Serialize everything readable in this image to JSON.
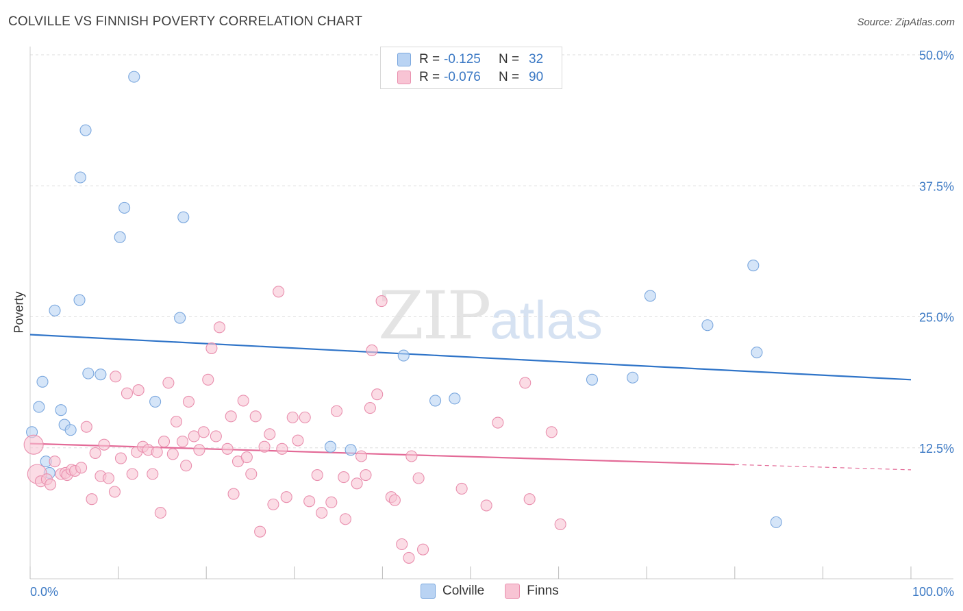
{
  "header": {
    "title": "COLVILLE VS FINNISH POVERTY CORRELATION CHART",
    "source": "Source: ZipAtlas.com"
  },
  "watermark": {
    "part1": "ZIP",
    "part2": "atlas"
  },
  "legend_top": {
    "rows": [
      {
        "r_label": "R =",
        "r_value": "-0.125",
        "n_label": "N =",
        "n_value": "32"
      },
      {
        "r_label": "R =",
        "r_value": "-0.076",
        "n_label": "N =",
        "n_value": "90"
      }
    ]
  },
  "legend_bottom": {
    "items": [
      "Colville",
      "Finns"
    ]
  },
  "colors": {
    "colville_fill": "#b9d3f3",
    "colville_stroke": "#7aa7de",
    "colville_line": "#2f74c8",
    "finns_fill": "#f8c4d4",
    "finns_stroke": "#e98fae",
    "finns_line": "#e36a97",
    "axis_text": "#3a78c4",
    "grid": "#dddddd"
  },
  "chart_data": {
    "type": "scatter",
    "title": "COLVILLE VS FINNISH POVERTY CORRELATION CHART",
    "xlabel": "",
    "ylabel": "Poverty",
    "xlim": [
      0,
      100
    ],
    "ylim": [
      0,
      50
    ],
    "x_tick_labels": [
      "0.0%",
      "100.0%"
    ],
    "y_ticks": [
      12.5,
      25.0,
      37.5,
      50.0
    ],
    "y_tick_labels": [
      "12.5%",
      "25.0%",
      "37.5%",
      "50.0%"
    ],
    "series": [
      {
        "name": "Colville",
        "r": -0.125,
        "n": 32,
        "trend": {
          "x": [
            0,
            100
          ],
          "y": [
            23.3,
            19.0
          ]
        },
        "points": [
          [
            11.8,
            47.9
          ],
          [
            6.3,
            42.8
          ],
          [
            5.7,
            38.3
          ],
          [
            10.7,
            35.4
          ],
          [
            17.4,
            34.5
          ],
          [
            10.2,
            32.6
          ],
          [
            2.8,
            25.6
          ],
          [
            5.6,
            26.6
          ],
          [
            17.0,
            24.9
          ],
          [
            1.4,
            18.8
          ],
          [
            6.6,
            19.6
          ],
          [
            8.0,
            19.5
          ],
          [
            1.0,
            16.4
          ],
          [
            3.5,
            16.1
          ],
          [
            3.9,
            14.7
          ],
          [
            4.6,
            14.2
          ],
          [
            0.2,
            14.0
          ],
          [
            14.2,
            16.9
          ],
          [
            1.8,
            11.2
          ],
          [
            2.2,
            10.1
          ],
          [
            34.1,
            12.6
          ],
          [
            36.4,
            12.3
          ],
          [
            42.4,
            21.3
          ],
          [
            46.0,
            17.0
          ],
          [
            48.2,
            17.2
          ],
          [
            63.8,
            19.0
          ],
          [
            68.4,
            19.2
          ],
          [
            70.4,
            27.0
          ],
          [
            76.9,
            24.2
          ],
          [
            82.1,
            29.9
          ],
          [
            82.5,
            21.6
          ],
          [
            84.7,
            5.4
          ]
        ]
      },
      {
        "name": "Finns",
        "r": -0.076,
        "n": 90,
        "trend": {
          "x": [
            0,
            80
          ],
          "y": [
            12.9,
            10.9
          ]
        },
        "trend_dashed": {
          "x": [
            80,
            100
          ],
          "y": [
            10.9,
            10.4
          ]
        },
        "points": [
          [
            0.4,
            12.8
          ],
          [
            0.8,
            10.0
          ],
          [
            1.2,
            9.3
          ],
          [
            1.9,
            9.5
          ],
          [
            2.3,
            9.0
          ],
          [
            2.8,
            11.2
          ],
          [
            3.5,
            10.0
          ],
          [
            4.0,
            10.1
          ],
          [
            4.2,
            9.9
          ],
          [
            4.7,
            10.4
          ],
          [
            5.1,
            10.3
          ],
          [
            5.8,
            10.6
          ],
          [
            6.4,
            14.5
          ],
          [
            7.0,
            7.6
          ],
          [
            7.4,
            12.0
          ],
          [
            8.0,
            9.8
          ],
          [
            8.4,
            12.8
          ],
          [
            8.9,
            9.6
          ],
          [
            9.6,
            8.3
          ],
          [
            9.7,
            19.3
          ],
          [
            10.3,
            11.5
          ],
          [
            11.0,
            17.7
          ],
          [
            11.6,
            10.0
          ],
          [
            12.1,
            12.1
          ],
          [
            12.3,
            18.0
          ],
          [
            12.8,
            12.6
          ],
          [
            13.4,
            12.3
          ],
          [
            13.9,
            10.0
          ],
          [
            14.4,
            12.1
          ],
          [
            14.8,
            6.3
          ],
          [
            15.2,
            13.1
          ],
          [
            15.7,
            18.7
          ],
          [
            16.2,
            11.9
          ],
          [
            16.6,
            15.0
          ],
          [
            17.3,
            13.1
          ],
          [
            17.7,
            10.8
          ],
          [
            18.0,
            16.9
          ],
          [
            18.6,
            13.6
          ],
          [
            19.2,
            12.3
          ],
          [
            19.7,
            14.0
          ],
          [
            20.2,
            19.0
          ],
          [
            20.6,
            22.0
          ],
          [
            21.1,
            13.6
          ],
          [
            21.5,
            24.0
          ],
          [
            22.4,
            12.4
          ],
          [
            22.8,
            15.5
          ],
          [
            23.1,
            8.1
          ],
          [
            23.6,
            11.2
          ],
          [
            24.2,
            17.0
          ],
          [
            24.6,
            11.6
          ],
          [
            25.1,
            10.0
          ],
          [
            25.6,
            15.5
          ],
          [
            26.1,
            4.5
          ],
          [
            26.6,
            12.6
          ],
          [
            27.2,
            13.8
          ],
          [
            27.6,
            7.1
          ],
          [
            28.2,
            27.4
          ],
          [
            28.6,
            12.4
          ],
          [
            29.1,
            7.8
          ],
          [
            29.8,
            15.4
          ],
          [
            30.4,
            13.2
          ],
          [
            31.2,
            15.4
          ],
          [
            31.7,
            7.4
          ],
          [
            32.6,
            9.9
          ],
          [
            33.1,
            6.3
          ],
          [
            34.2,
            7.3
          ],
          [
            34.8,
            16.0
          ],
          [
            35.6,
            9.7
          ],
          [
            35.8,
            5.7
          ],
          [
            37.1,
            9.1
          ],
          [
            37.6,
            11.7
          ],
          [
            38.1,
            9.9
          ],
          [
            38.6,
            16.3
          ],
          [
            38.8,
            21.8
          ],
          [
            39.4,
            17.6
          ],
          [
            39.9,
            26.5
          ],
          [
            41.0,
            7.8
          ],
          [
            41.4,
            7.5
          ],
          [
            42.2,
            3.3
          ],
          [
            43.0,
            2.0
          ],
          [
            43.3,
            11.7
          ],
          [
            44.1,
            9.6
          ],
          [
            44.6,
            2.8
          ],
          [
            49.0,
            8.6
          ],
          [
            51.8,
            7.0
          ],
          [
            53.1,
            14.9
          ],
          [
            56.2,
            18.7
          ],
          [
            56.7,
            7.6
          ],
          [
            59.2,
            14.0
          ],
          [
            60.2,
            5.2
          ]
        ]
      }
    ]
  }
}
